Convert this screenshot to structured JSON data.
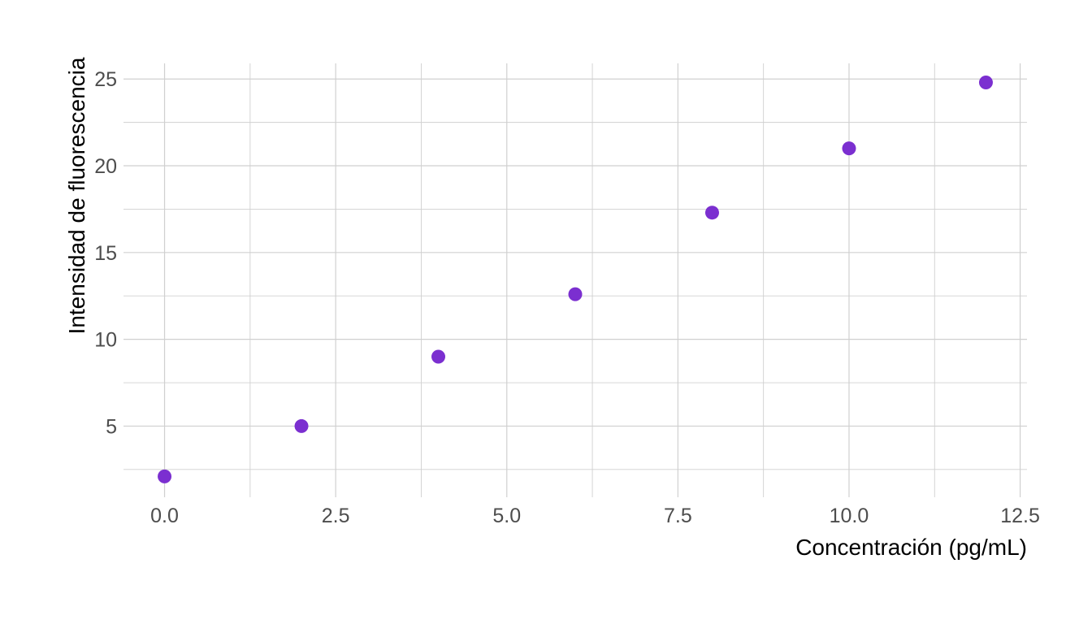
{
  "chart_data": {
    "type": "scatter",
    "title": "",
    "xlabel": "Concentración (pg/mL)",
    "ylabel": "Intensidad de fluorescencia",
    "x": [
      0,
      2,
      4,
      6,
      8,
      10,
      12
    ],
    "y": [
      2.1,
      5.0,
      9.0,
      12.6,
      17.3,
      21.0,
      24.8
    ],
    "xlim": [
      -0.6,
      12.6
    ],
    "ylim": [
      0.9,
      25.9
    ],
    "x_ticks": [
      "0.0",
      "2.5",
      "5.0",
      "7.5",
      "10.0",
      "12.5"
    ],
    "y_ticks": [
      "5",
      "10",
      "15",
      "20",
      "25"
    ],
    "grid": true,
    "point_color": "#7b2fd0",
    "legend": "none"
  }
}
